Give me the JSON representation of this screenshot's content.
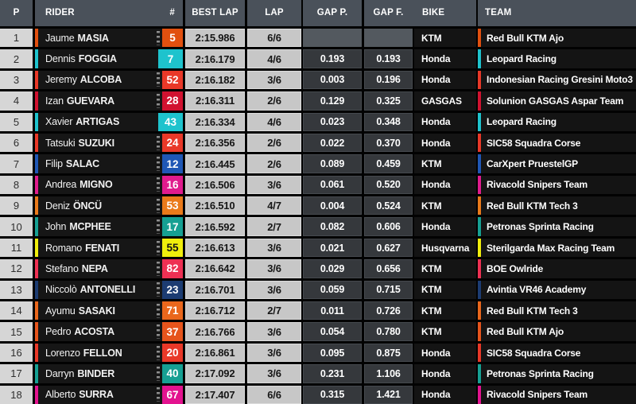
{
  "header": {
    "p": "P",
    "rider": "RIDER",
    "num": "#",
    "best_lap": "BEST LAP",
    "lap": "LAP",
    "gap_p": "GAP P.",
    "gap_f": "GAP F.",
    "bike": "BIKE",
    "team": "TEAM"
  },
  "colors": {
    "header_bg": "#4a515a",
    "row_dark_bg": "#161616",
    "position_bg": "#d6d6d6",
    "laptime_bg": "#c7c7c7",
    "gap_bg": "#35383c",
    "gap_empty_bg": "#53595f",
    "separator": "#000000"
  },
  "rows": [
    {
      "pos": "1",
      "first": "Jaume",
      "last": "MASIA",
      "num": "5",
      "color": "#e1500f",
      "num_dark": false,
      "dots": true,
      "best_lap": "2:15.986",
      "lap": "6/6",
      "gap_p": "",
      "gap_f": "",
      "bike": "KTM",
      "team": "Red Bull KTM Ajo"
    },
    {
      "pos": "2",
      "first": "Dennis",
      "last": "FOGGIA",
      "num": "7",
      "color": "#1ec3cd",
      "num_dark": false,
      "dots": false,
      "best_lap": "2:16.179",
      "lap": "4/6",
      "gap_p": "0.193",
      "gap_f": "0.193",
      "bike": "Honda",
      "team": "Leopard Racing"
    },
    {
      "pos": "3",
      "first": "Jeremy",
      "last": "ALCOBA",
      "num": "52",
      "color": "#e93828",
      "num_dark": false,
      "dots": true,
      "best_lap": "2:16.182",
      "lap": "3/6",
      "gap_p": "0.003",
      "gap_f": "0.196",
      "bike": "Honda",
      "team": "Indonesian Racing Gresini Moto3"
    },
    {
      "pos": "4",
      "first": "Izan",
      "last": "GUEVARA",
      "num": "28",
      "color": "#d11230",
      "num_dark": false,
      "dots": true,
      "best_lap": "2:16.311",
      "lap": "2/6",
      "gap_p": "0.129",
      "gap_f": "0.325",
      "bike": "GASGAS",
      "team": "Solunion GASGAS Aspar Team"
    },
    {
      "pos": "5",
      "first": "Xavier",
      "last": "ARTIGAS",
      "num": "43",
      "color": "#1ec3cd",
      "num_dark": false,
      "dots": false,
      "best_lap": "2:16.334",
      "lap": "4/6",
      "gap_p": "0.023",
      "gap_f": "0.348",
      "bike": "Honda",
      "team": "Leopard Racing"
    },
    {
      "pos": "6",
      "first": "Tatsuki",
      "last": "SUZUKI",
      "num": "24",
      "color": "#e93828",
      "num_dark": false,
      "dots": true,
      "best_lap": "2:16.356",
      "lap": "2/6",
      "gap_p": "0.022",
      "gap_f": "0.370",
      "bike": "Honda",
      "team": "SIC58 Squadra Corse"
    },
    {
      "pos": "7",
      "first": "Filip",
      "last": "SALAC",
      "num": "12",
      "color": "#1f57b5",
      "num_dark": false,
      "dots": true,
      "best_lap": "2:16.445",
      "lap": "2/6",
      "gap_p": "0.089",
      "gap_f": "0.459",
      "bike": "KTM",
      "team": "CarXpert PruestelGP"
    },
    {
      "pos": "8",
      "first": "Andrea",
      "last": "MIGNO",
      "num": "16",
      "color": "#e01b8d",
      "num_dark": false,
      "dots": true,
      "best_lap": "2:16.506",
      "lap": "3/6",
      "gap_p": "0.061",
      "gap_f": "0.520",
      "bike": "Honda",
      "team": "Rivacold Snipers Team"
    },
    {
      "pos": "9",
      "first": "Deniz",
      "last": "ÖNCÜ",
      "num": "53",
      "color": "#ea7a1a",
      "num_dark": false,
      "dots": true,
      "best_lap": "2:16.510",
      "lap": "4/7",
      "gap_p": "0.004",
      "gap_f": "0.524",
      "bike": "KTM",
      "team": "Red Bull KTM Tech 3"
    },
    {
      "pos": "10",
      "first": "John",
      "last": "MCPHEE",
      "num": "17",
      "color": "#16a093",
      "num_dark": false,
      "dots": true,
      "best_lap": "2:16.592",
      "lap": "2/7",
      "gap_p": "0.082",
      "gap_f": "0.606",
      "bike": "Honda",
      "team": "Petronas Sprinta Racing"
    },
    {
      "pos": "11",
      "first": "Romano",
      "last": "FENATI",
      "num": "55",
      "color": "#f0ee0c",
      "num_dark": true,
      "dots": true,
      "best_lap": "2:16.613",
      "lap": "3/6",
      "gap_p": "0.021",
      "gap_f": "0.627",
      "bike": "Husqvarna",
      "team": "Sterilgarda Max Racing Team"
    },
    {
      "pos": "12",
      "first": "Stefano",
      "last": "NEPA",
      "num": "82",
      "color": "#ee3053",
      "num_dark": false,
      "dots": true,
      "best_lap": "2:16.642",
      "lap": "3/6",
      "gap_p": "0.029",
      "gap_f": "0.656",
      "bike": "KTM",
      "team": "BOE Owlride"
    },
    {
      "pos": "13",
      "first": "Niccolò",
      "last": "ANTONELLI",
      "num": "23",
      "color": "#1c3c72",
      "num_dark": false,
      "dots": true,
      "best_lap": "2:16.701",
      "lap": "3/6",
      "gap_p": "0.059",
      "gap_f": "0.715",
      "bike": "KTM",
      "team": "Avintia VR46 Academy"
    },
    {
      "pos": "14",
      "first": "Ayumu",
      "last": "SASAKI",
      "num": "71",
      "color": "#ea671c",
      "num_dark": false,
      "dots": true,
      "best_lap": "2:16.712",
      "lap": "2/7",
      "gap_p": "0.011",
      "gap_f": "0.726",
      "bike": "KTM",
      "team": "Red Bull KTM Tech 3"
    },
    {
      "pos": "15",
      "first": "Pedro",
      "last": "ACOSTA",
      "num": "37",
      "color": "#e6541c",
      "num_dark": false,
      "dots": true,
      "best_lap": "2:16.766",
      "lap": "3/6",
      "gap_p": "0.054",
      "gap_f": "0.780",
      "bike": "KTM",
      "team": "Red Bull KTM Ajo"
    },
    {
      "pos": "16",
      "first": "Lorenzo",
      "last": "FELLON",
      "num": "20",
      "color": "#e93828",
      "num_dark": false,
      "dots": true,
      "best_lap": "2:16.861",
      "lap": "3/6",
      "gap_p": "0.095",
      "gap_f": "0.875",
      "bike": "Honda",
      "team": "SIC58 Squadra Corse"
    },
    {
      "pos": "17",
      "first": "Darryn",
      "last": "BINDER",
      "num": "40",
      "color": "#16a093",
      "num_dark": false,
      "dots": true,
      "best_lap": "2:17.092",
      "lap": "3/6",
      "gap_p": "0.231",
      "gap_f": "1.106",
      "bike": "Honda",
      "team": "Petronas Sprinta Racing"
    },
    {
      "pos": "18",
      "first": "Alberto",
      "last": "SURRA",
      "num": "67",
      "color": "#e3138f",
      "num_dark": false,
      "dots": true,
      "best_lap": "2:17.407",
      "lap": "6/6",
      "gap_p": "0.315",
      "gap_f": "1.421",
      "bike": "Honda",
      "team": "Rivacold Snipers Team"
    }
  ]
}
